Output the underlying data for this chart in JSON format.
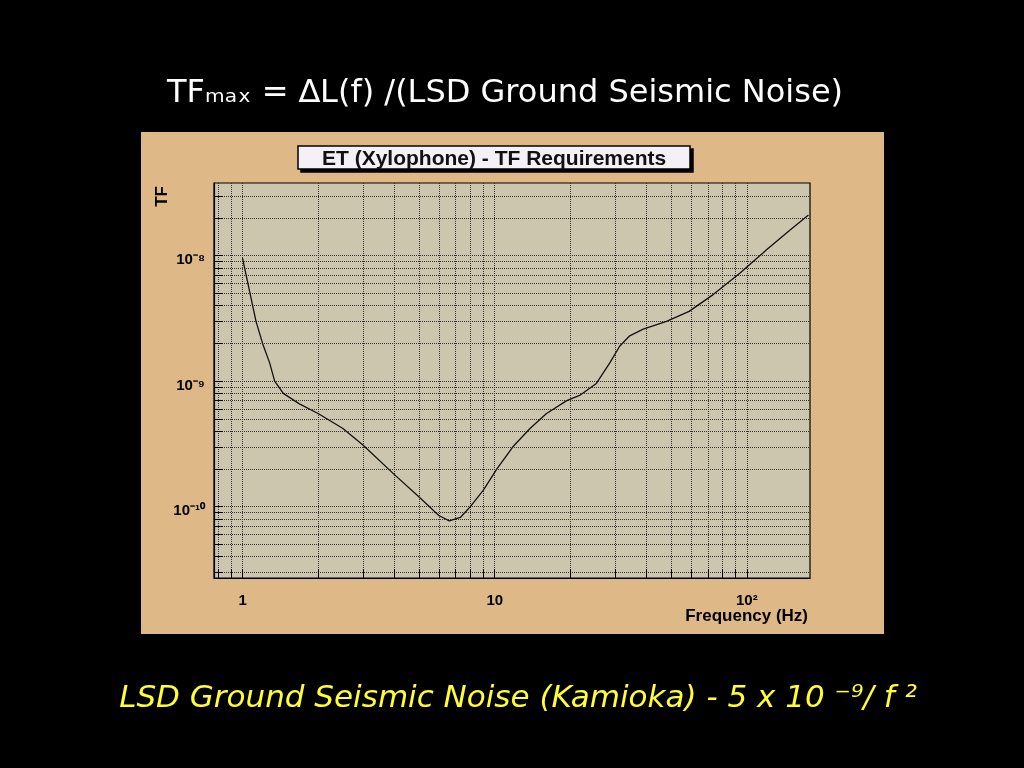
{
  "chart_data": {
    "type": "line",
    "title": "TFₘₐₓ = ∆L(f) /(LSD Ground Seismic Noise)",
    "subtitle": "ET (Xylophone) - TF Requirements",
    "xlabel": "Frequency (Hz)",
    "ylabel": "TF",
    "annotations": [
      "LSD Ground Seismic Noise (Kamioka) - 5 x 10 ⁻⁹/ f ²"
    ],
    "x": [
      1.0,
      1.13,
      1.2,
      1.28,
      1.34,
      1.45,
      1.68,
      2.0,
      2.5,
      3.0,
      4.0,
      5.0,
      6.0,
      6.6,
      7.3,
      8.0,
      9.0,
      10.2,
      11.8,
      13.8,
      16,
      19.3,
      21.7,
      25.3,
      28.6,
      31.3,
      34.3,
      38.8,
      48,
      59,
      73.5,
      94,
      120,
      148,
      175
    ],
    "values": [
      9.5e-09,
      3e-09,
      2e-09,
      1.4e-09,
      1e-09,
      8e-10,
      6.6e-10,
      5.5e-10,
      4.2e-10,
      3.1e-10,
      1.8e-10,
      1.2e-10,
      8.5e-11,
      7.7e-11,
      8.2e-11,
      1e-10,
      1.35e-10,
      2e-10,
      3e-10,
      4.2e-10,
      5.5e-10,
      7e-10,
      7.7e-10,
      9.6e-10,
      1.4e-09,
      1.9e-09,
      2.3e-09,
      2.6e-09,
      3e-09,
      3.6e-09,
      4.9e-09,
      7.3e-09,
      1.12e-08,
      1.6e-08,
      2.1e-08
    ],
    "color": "#111111",
    "xlim": [
      0.77,
      178
    ],
    "ylim": [
      2.7e-11,
      3.8e-08
    ],
    "xticks": [
      {
        "value": 0.8,
        "label": null
      },
      {
        "value": 0.9,
        "label": null
      },
      1,
      {
        "value": 2,
        "label": null
      },
      {
        "value": 3,
        "label": null
      },
      {
        "value": 4,
        "label": null
      },
      {
        "value": 5,
        "label": null
      },
      {
        "value": 6,
        "label": null
      },
      {
        "value": 7,
        "label": null
      },
      {
        "value": 8,
        "label": null
      },
      {
        "value": 9,
        "label": null
      },
      10,
      {
        "value": 20,
        "label": null
      },
      {
        "value": 30,
        "label": null
      },
      {
        "value": 40,
        "label": null
      },
      {
        "value": 50,
        "label": null
      },
      {
        "value": 60,
        "label": null
      },
      {
        "value": 70,
        "label": null
      },
      {
        "value": 80,
        "label": null
      },
      {
        "value": 90,
        "label": null
      },
      {
        "value": 100,
        "label": "10²"
      }
    ],
    "yticks": [
      {
        "value": 3e-11,
        "label": null
      },
      {
        "value": 4e-11,
        "label": null
      },
      {
        "value": 5e-11,
        "label": null
      },
      {
        "value": 6e-11,
        "label": null
      },
      {
        "value": 7e-11,
        "label": null
      },
      {
        "value": 8e-11,
        "label": null
      },
      {
        "value": 9e-11,
        "label": null
      },
      {
        "value": 1e-10,
        "label": "10⁻¹⁰"
      },
      {
        "value": 2e-10,
        "label": null
      },
      {
        "value": 3e-10,
        "label": null
      },
      {
        "value": 4e-10,
        "label": null
      },
      {
        "value": 5e-10,
        "label": null
      },
      {
        "value": 6e-10,
        "label": null
      },
      {
        "value": 7e-10,
        "label": null
      },
      {
        "value": 8e-10,
        "label": null
      },
      {
        "value": 9e-10,
        "label": null
      },
      {
        "value": 1e-09,
        "label": "10⁻⁹"
      },
      {
        "value": 2e-09,
        "label": null
      },
      {
        "value": 3e-09,
        "label": null
      },
      {
        "value": 4e-09,
        "label": null
      },
      {
        "value": 5e-09,
        "label": null
      },
      {
        "value": 6e-09,
        "label": null
      },
      {
        "value": 7e-09,
        "label": null
      },
      {
        "value": 8e-09,
        "label": null
      },
      {
        "value": 9e-09,
        "label": null
      },
      {
        "value": 1e-08,
        "label": "10⁻⁸"
      },
      {
        "value": 2e-08,
        "label": null
      },
      {
        "value": 3e-08,
        "label": null
      }
    ],
    "log": "xy",
    "grid": true
  }
}
